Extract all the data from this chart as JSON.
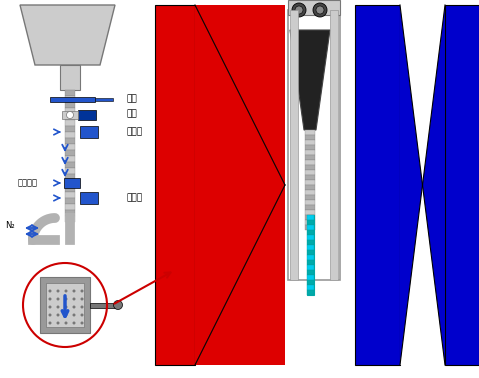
{
  "bg_color": "#ffffff",
  "fig_width": 4.79,
  "fig_height": 3.78,
  "labels": {
    "valve": "밸브",
    "motor": "모터",
    "vibrator1": "진동자",
    "sensor": "근접센서",
    "vibrator2": "진동자",
    "n2": "N₂"
  },
  "colors": {
    "gray": "#aaaaaa",
    "gray_dark": "#777777",
    "gray_light": "#cccccc",
    "gray_mid": "#999999",
    "blue": "#2255cc",
    "blue_dark": "#003399",
    "red": "#dd0000",
    "blue_bg": "#0000cc",
    "blue_right": "#0000ee",
    "cyan": "#00ccee",
    "black": "#111111",
    "white": "#ffffff",
    "arrow_red": "#cc0000"
  }
}
